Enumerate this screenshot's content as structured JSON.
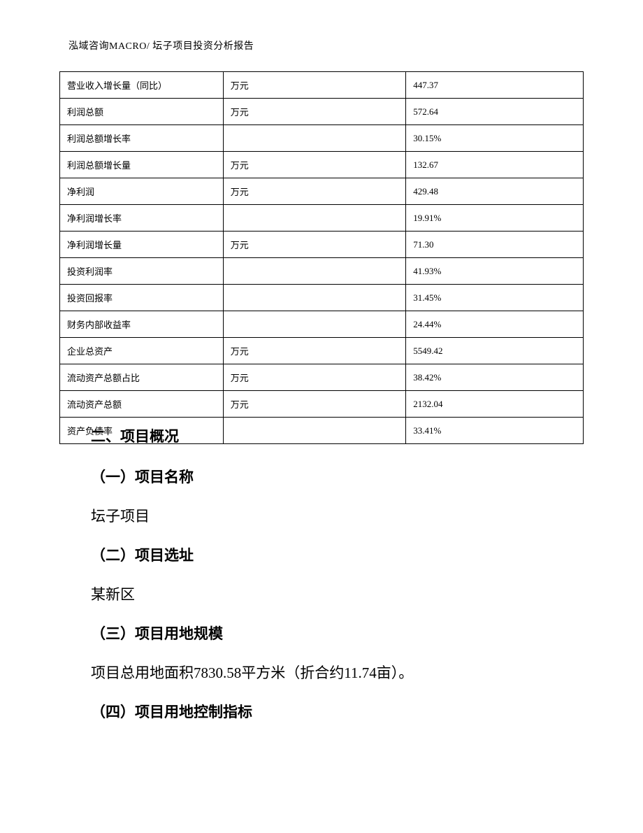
{
  "header": {
    "text": "泓域咨询MACRO/    坛子项目投资分析报告"
  },
  "table": {
    "columns": {
      "col1_width": 234,
      "col2_width": 262,
      "col3_width": 254
    },
    "border_color": "#000000",
    "font_size": 13,
    "rows": [
      {
        "label": "营业收入增长量（同比）",
        "unit": "万元",
        "value": "447.37"
      },
      {
        "label": "利润总额",
        "unit": "万元",
        "value": "572.64"
      },
      {
        "label": "利润总额增长率",
        "unit": "",
        "value": "30.15%"
      },
      {
        "label": "利润总额增长量",
        "unit": "万元",
        "value": "132.67"
      },
      {
        "label": "净利润",
        "unit": "万元",
        "value": "429.48"
      },
      {
        "label": "净利润增长率",
        "unit": "",
        "value": "19.91%"
      },
      {
        "label": "净利润增长量",
        "unit": "万元",
        "value": "71.30"
      },
      {
        "label": "投资利润率",
        "unit": "",
        "value": "41.93%"
      },
      {
        "label": "投资回报率",
        "unit": "",
        "value": "31.45%"
      },
      {
        "label": "财务内部收益率",
        "unit": "",
        "value": "24.44%"
      },
      {
        "label": "企业总资产",
        "unit": "万元",
        "value": "5549.42"
      },
      {
        "label": "流动资产总额占比",
        "unit": "万元",
        "value": "38.42%"
      },
      {
        "label": "流动资产总额",
        "unit": "万元",
        "value": "2132.04"
      },
      {
        "label": "资产负债率",
        "unit": "",
        "value": "33.41%"
      }
    ]
  },
  "sections": {
    "main_heading": "二、项目概况",
    "sub1_heading": "（一）项目名称",
    "sub1_text": "坛子项目",
    "sub2_heading": "（二）项目选址",
    "sub2_text": "某新区",
    "sub3_heading": "（三）项目用地规模",
    "sub3_text": "项目总用地面积7830.58平方米（折合约11.74亩）。",
    "sub4_heading": "（四）项目用地控制指标"
  },
  "styling": {
    "background_color": "#ffffff",
    "text_color": "#000000",
    "heading_font": "SimHei",
    "body_font": "SimSun",
    "heading_fontsize": 21,
    "body_fontsize": 21,
    "header_fontsize": 14
  }
}
